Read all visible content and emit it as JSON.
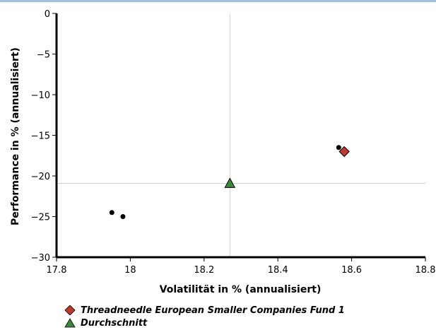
{
  "chart_data": {
    "type": "scatter",
    "xlabel": "Volatilität in % (annualisiert)",
    "ylabel": "Performance in % (annualisiert)",
    "xlim": [
      17.8,
      18.8
    ],
    "ylim": [
      -30,
      0
    ],
    "x_ticks": [
      17.8,
      18,
      18.2,
      18.4,
      18.6,
      18.8
    ],
    "y_ticks": [
      0,
      -5,
      -10,
      -15,
      -20,
      -25,
      -30
    ],
    "x_tick_labels": [
      "17.8",
      "18",
      "18.2",
      "18.4",
      "18.6",
      "18.8"
    ],
    "y_tick_labels": [
      "0",
      "−5",
      "−10",
      "−15",
      "−20",
      "−25",
      "−30"
    ],
    "grid": false,
    "reference_lines": {
      "x": 18.27,
      "y": -20.9,
      "color": "#d0d0d0"
    },
    "series": [
      {
        "style": "dot",
        "color": "#000000",
        "points": [
          {
            "x": 17.95,
            "y": -24.5
          },
          {
            "x": 17.98,
            "y": -25.0
          },
          {
            "x": 18.565,
            "y": -16.5
          }
        ]
      },
      {
        "name": "Threadneedle European Smaller Companies Fund 1",
        "style": "diamond",
        "color": "#c0392b",
        "points": [
          {
            "x": 18.58,
            "y": -17.0
          }
        ]
      },
      {
        "name": "Durchschnitt",
        "style": "triangle",
        "color": "#3a8a3a",
        "points": [
          {
            "x": 18.27,
            "y": -20.9
          }
        ]
      }
    ],
    "legend_position": "bottom-left"
  }
}
